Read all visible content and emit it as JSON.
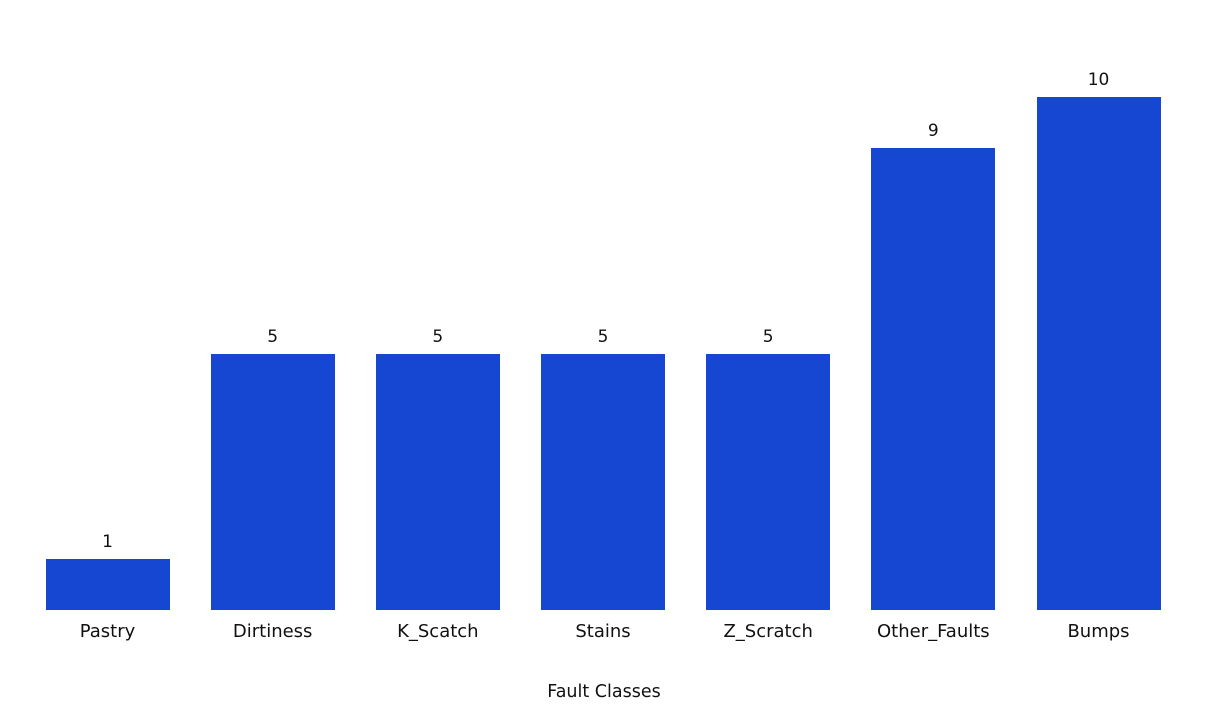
{
  "chart_data": {
    "type": "bar",
    "categories": [
      "Pastry",
      "Dirtiness",
      "K_Scatch",
      "Stains",
      "Z_Scratch",
      "Other_Faults",
      "Bumps"
    ],
    "values": [
      1,
      5,
      5,
      5,
      5,
      9,
      10
    ],
    "value_labels": [
      "1",
      "5",
      "5",
      "5",
      "5",
      "9",
      "10"
    ],
    "title": "",
    "xlabel": "Fault Classes",
    "ylabel": "",
    "ylim": [
      0,
      10
    ],
    "grid": false,
    "legend": false,
    "bar_color": "#1647d2",
    "text_color": "#111111",
    "background_color": "#ffffff"
  }
}
